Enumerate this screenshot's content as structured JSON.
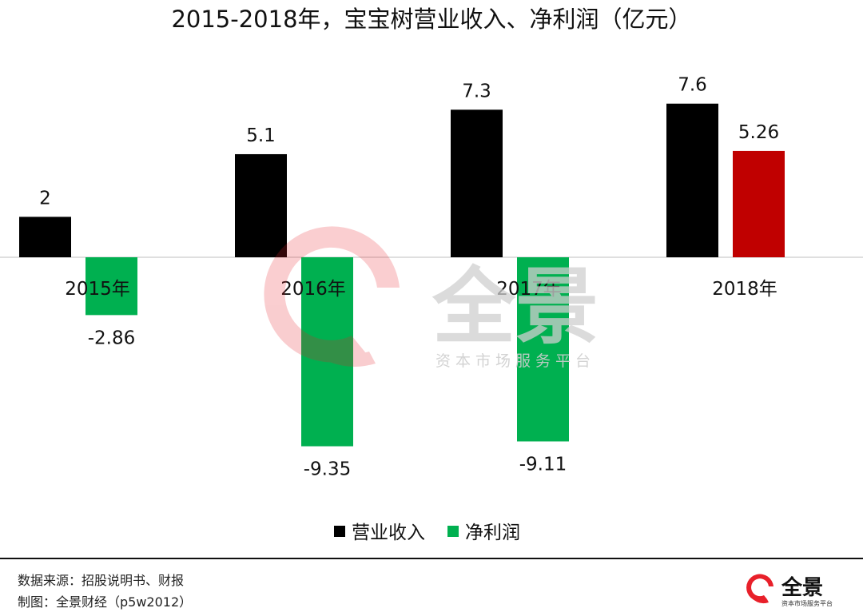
{
  "title": "2015-2018年，宝宝树营业收入、净利润（亿元）",
  "chart_data": {
    "type": "bar",
    "title": "2015-2018年，宝宝树营业收入、净利润（亿元）",
    "categories": [
      "2015年",
      "2016年",
      "2017年",
      "2018年"
    ],
    "series": [
      {
        "name": "营业收入",
        "values": [
          2,
          5.1,
          7.3,
          7.6
        ],
        "value_labels": [
          "2",
          "5.1",
          "7.3",
          "7.6"
        ],
        "color": "#000000"
      },
      {
        "name": "净利润",
        "values": [
          -2.86,
          -9.35,
          -9.11,
          5.26
        ],
        "value_labels": [
          "-2.86",
          "-9.35",
          "-9.11",
          "5.26"
        ],
        "color": "#00B050",
        "positive_color": "#C00000"
      }
    ],
    "ylim": [
      -10.4,
      8.3
    ],
    "grid": false,
    "legend": "bottom"
  },
  "watermark": {
    "brand": "全景",
    "tagline": "资本市场服务平台",
    "accent_color": "#E8202A"
  },
  "footer": {
    "source": "数据来源：招股说明书、财报",
    "credit": "制图：全景财经（p5w2012）",
    "logo_text": "全景",
    "logo_tagline": "资本市场服务平台"
  }
}
